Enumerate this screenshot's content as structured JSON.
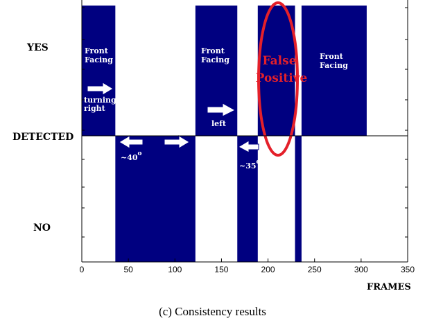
{
  "chart_data": {
    "type": "bar",
    "title": "",
    "xlabel": "FRAMES",
    "ylabel": "",
    "xlim": [
      0,
      350
    ],
    "x_ticks": [
      "0",
      "50",
      "100",
      "150",
      "200",
      "250",
      "300",
      "350"
    ],
    "y_tick_labels": {
      "top": "YES",
      "middle": "DETECTED",
      "bottom": "NO"
    },
    "grid": false,
    "colors": {
      "detected_yes": "#000080",
      "detected_no": "#000080",
      "highlight": "#e4202a",
      "arrow": "#ffffff"
    },
    "segments": [
      {
        "start": 0,
        "end": 36,
        "state": "YES"
      },
      {
        "start": 36,
        "end": 122,
        "state": "NO"
      },
      {
        "start": 122,
        "end": 167,
        "state": "YES"
      },
      {
        "start": 167,
        "end": 189,
        "state": "NO"
      },
      {
        "start": 189,
        "end": 229,
        "state": "YES"
      },
      {
        "start": 229,
        "end": 236,
        "state": "NO"
      },
      {
        "start": 236,
        "end": 306,
        "state": "YES"
      }
    ],
    "annotations": [
      {
        "id": "ff1",
        "lines": [
          "Front",
          "Facing"
        ]
      },
      {
        "id": "turning",
        "lines": [
          "turning",
          "right"
        ]
      },
      {
        "id": "ang40",
        "text": "~40",
        "sup": "o"
      },
      {
        "id": "ff2",
        "lines": [
          "Front",
          "Facing"
        ]
      },
      {
        "id": "left",
        "text": "left"
      },
      {
        "id": "ang35",
        "text": "~35",
        "sup": "o"
      },
      {
        "id": "fp",
        "lines": [
          "False",
          "Positive"
        ]
      },
      {
        "id": "ff3",
        "lines": [
          "Front",
          "Facing"
        ]
      }
    ]
  },
  "caption": "(c) Consistency results"
}
